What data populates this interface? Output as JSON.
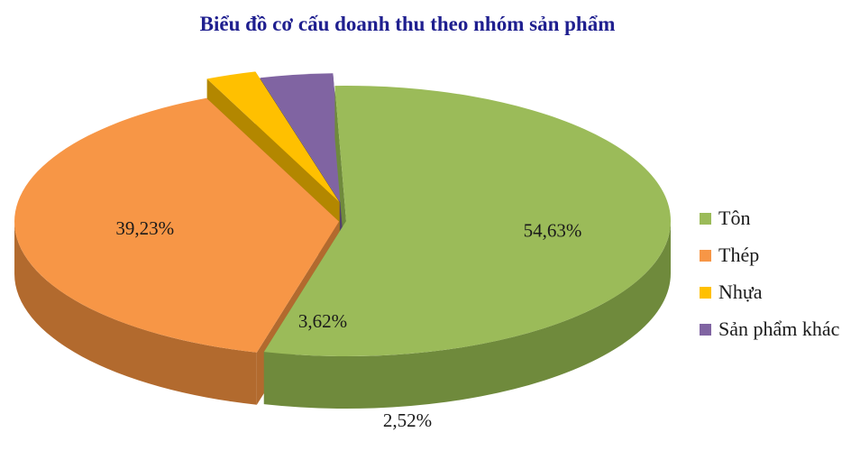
{
  "chart_data": {
    "type": "pie",
    "title": "Biểu đồ cơ cấu doanh thu theo nhóm sản phẩm",
    "slices": [
      {
        "name": "Tôn",
        "value": 54.63,
        "label": "54,63%",
        "color": "#9bbb59",
        "side_color": "#6f8a3c"
      },
      {
        "name": "Thép",
        "value": 39.23,
        "label": "39,23%",
        "color": "#f79646",
        "side_color": "#b26a2e"
      },
      {
        "name": "Nhựa",
        "value": 2.52,
        "label": "2,52%",
        "color": "#ffc000",
        "side_color": "#b38700"
      },
      {
        "name": "Sản phẩm khác",
        "value": 3.62,
        "label": "3,62%",
        "color": "#8064a2",
        "side_color": "#54416c"
      }
    ],
    "legend_position": "right"
  }
}
